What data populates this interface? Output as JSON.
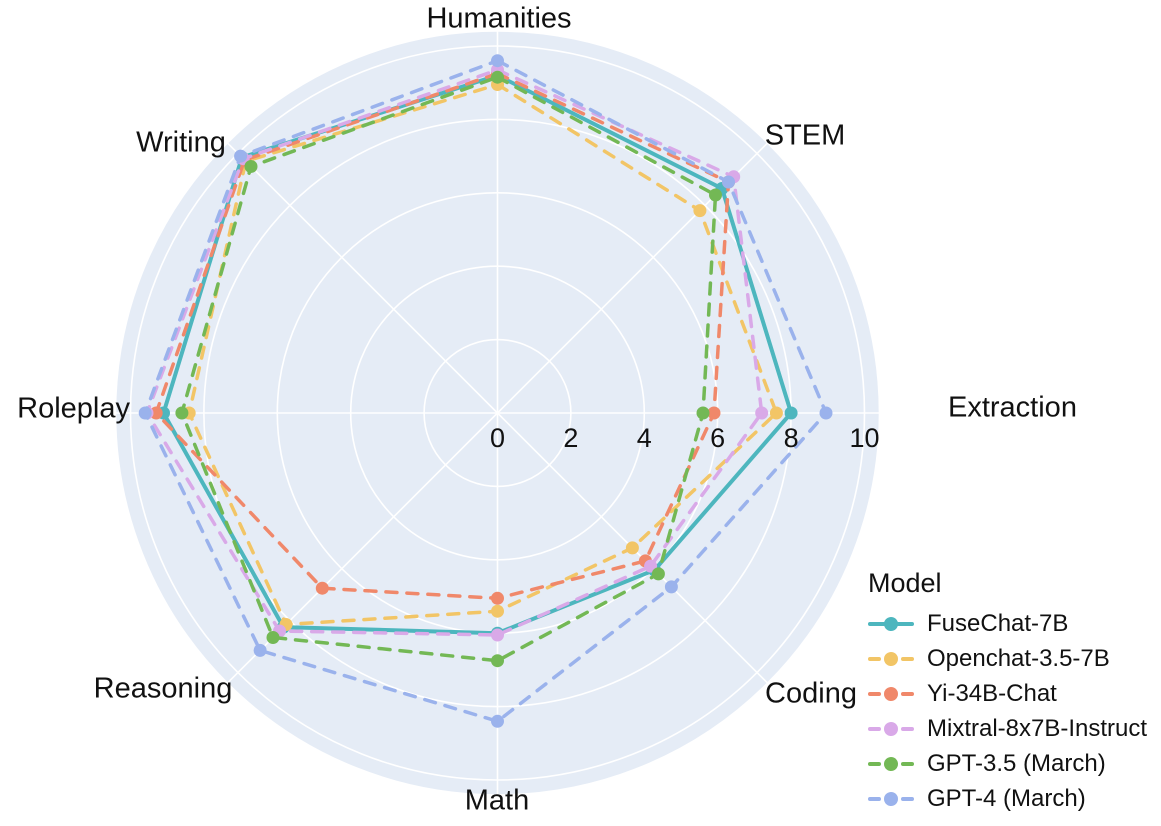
{
  "chart_data": {
    "type": "radar",
    "title": "",
    "legend_title": "Model",
    "categories": [
      "Humanities",
      "STEM",
      "Extraction",
      "Coding",
      "Math",
      "Reasoning",
      "Roleplay",
      "Writing"
    ],
    "angles_deg": [
      90,
      45,
      0,
      -45,
      -90,
      -135,
      180,
      135
    ],
    "radial_ticks": [
      0,
      2,
      4,
      6,
      8,
      10
    ],
    "radial_range": [
      0,
      10
    ],
    "grid": "on",
    "legend_position": "bottom-right",
    "colors": {
      "plot_background": "#E5ECF6",
      "grid_line": "#FFFFFF",
      "text": "#111111"
    },
    "series": [
      {
        "name": "FuseChat-7B",
        "color": "#4DB6BE",
        "line_style": "solid",
        "values": [
          9.2,
          8.65,
          8.0,
          6.05,
          6.0,
          8.25,
          9.1,
          9.85
        ]
      },
      {
        "name": "Openchat-3.5-7B",
        "color": "#F2C566",
        "line_style": "dashed",
        "values": [
          8.95,
          7.8,
          7.6,
          5.2,
          5.4,
          8.15,
          8.4,
          9.7
        ]
      },
      {
        "name": "Yi-34B-Chat",
        "color": "#F0886A",
        "line_style": "dashed",
        "values": [
          9.25,
          8.9,
          5.9,
          5.7,
          5.05,
          6.75,
          9.3,
          9.75
        ]
      },
      {
        "name": "Mixtral-8x7B-Instruct",
        "color": "#D9A9E8",
        "line_style": "dashed",
        "values": [
          9.35,
          9.1,
          7.2,
          5.9,
          6.05,
          8.4,
          9.55,
          9.8
        ]
      },
      {
        "name": "GPT-3.5 (March)",
        "color": "#73B855",
        "line_style": "dashed",
        "values": [
          9.15,
          8.4,
          5.6,
          6.2,
          6.75,
          8.65,
          8.6,
          9.5
        ]
      },
      {
        "name": "GPT-4 (March)",
        "color": "#9AB2EC",
        "line_style": "dashed",
        "values": [
          9.6,
          8.9,
          8.95,
          6.7,
          8.4,
          9.15,
          9.6,
          9.9
        ]
      }
    ]
  }
}
